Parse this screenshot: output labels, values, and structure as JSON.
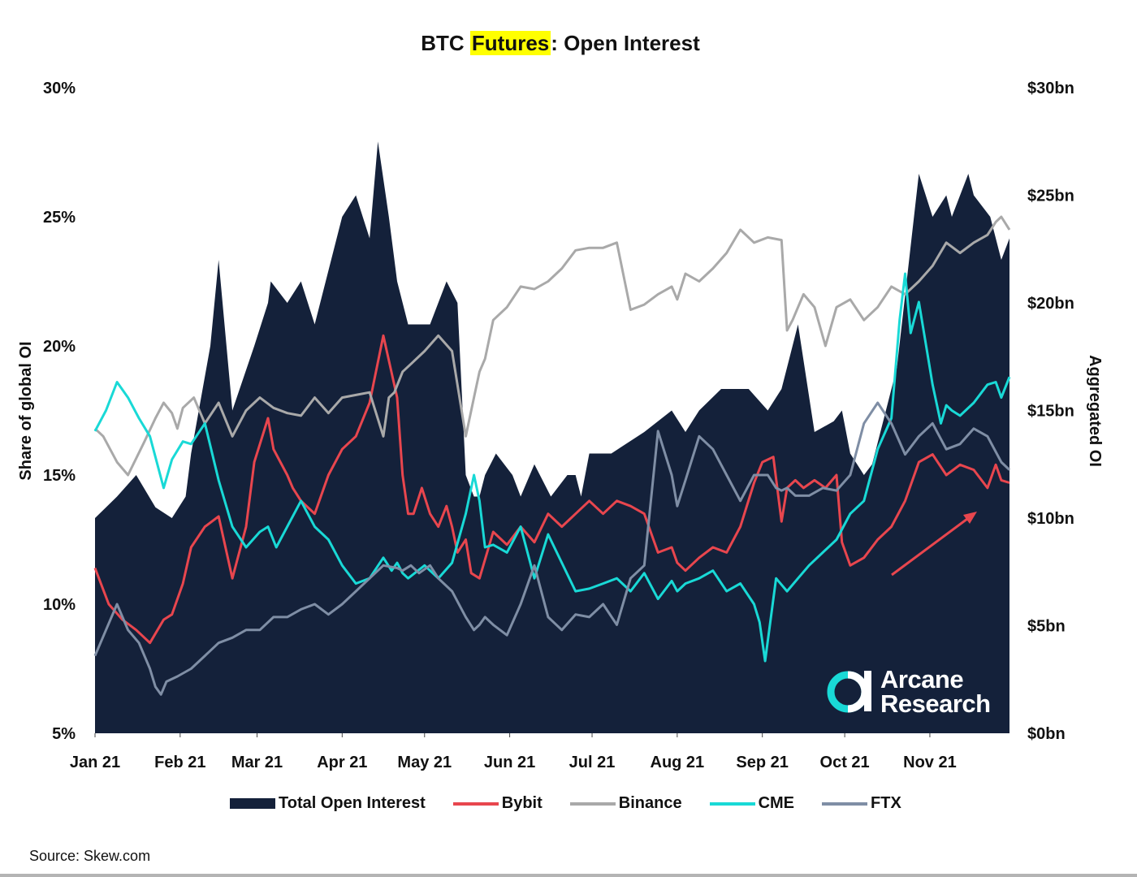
{
  "chart_data": {
    "type": "line",
    "title_parts": [
      "BTC ",
      "Futures",
      ": Open Interest"
    ],
    "ylabel_left": "Share of global OI",
    "ylabel_right": "Aggregated OI",
    "ylim_left": [
      5,
      30
    ],
    "ylim_right": [
      0,
      30
    ],
    "yticks_left": [
      "5%",
      "10%",
      "15%",
      "20%",
      "25%",
      "30%"
    ],
    "yticks_right": [
      "$0bn",
      "$5bn",
      "$10bn",
      "$15bn",
      "$20bn",
      "$25bn",
      "$30bn"
    ],
    "x_labels": [
      "Jan 21",
      "Feb 21",
      "Mar 21",
      "Apr 21",
      "May 21",
      "Jun 21",
      "Jul 21",
      "Aug 21",
      "Sep 21",
      "Oct 21",
      "Nov 21"
    ],
    "x_range_days": [
      0,
      333
    ],
    "grid": false,
    "legend_position": "bottom",
    "source": "Source: Skew.com",
    "logo_lines": [
      "Arcane",
      "Research"
    ],
    "colors": {
      "Total Open Interest": "#14213a",
      "Bybit": "#e8464e",
      "Binance": "#a9a9a9",
      "CME": "#19d9d6",
      "FTX": "#7f8ea5"
    },
    "series": [
      {
        "name": "Total Open Interest",
        "axis": "right",
        "kind": "area",
        "x": [
          0,
          8,
          15,
          22,
          28,
          33,
          35,
          42,
          45,
          50,
          58,
          63,
          64,
          70,
          75,
          80,
          90,
          95,
          100,
          103,
          107,
          110,
          114,
          122,
          128,
          132,
          135,
          138,
          140,
          142,
          146,
          152,
          155,
          160,
          166,
          172,
          175,
          177,
          180,
          188,
          200,
          210,
          215,
          220,
          228,
          238,
          245,
          250,
          252,
          256,
          262,
          269,
          272,
          275,
          280,
          283,
          292,
          300,
          305,
          310,
          312,
          318,
          320,
          326,
          328,
          330,
          333
        ],
        "values": [
          10,
          11,
          12,
          10.5,
          10,
          11,
          13,
          18,
          22,
          15,
          18,
          20,
          21,
          20,
          21,
          19,
          24,
          25,
          23,
          27.5,
          24,
          21,
          19,
          19,
          21,
          20,
          12,
          11,
          11,
          12,
          13,
          12,
          11,
          12.5,
          11,
          12,
          12,
          11,
          13,
          13,
          14,
          15,
          14,
          15,
          16,
          16,
          15,
          16,
          17,
          19,
          14,
          14.5,
          15,
          13,
          12,
          12.5,
          17,
          26,
          24,
          25,
          24,
          26,
          25,
          24,
          23,
          22,
          23
        ]
      },
      {
        "name": "Bybit",
        "axis": "left",
        "x": [
          0,
          5,
          10,
          15,
          20,
          25,
          28,
          32,
          35,
          40,
          45,
          50,
          55,
          58,
          63,
          65,
          70,
          72,
          75,
          80,
          85,
          90,
          95,
          100,
          105,
          110,
          112,
          114,
          116,
          119,
          122,
          125,
          128,
          130,
          132,
          135,
          137,
          140,
          145,
          150,
          155,
          160,
          165,
          170,
          175,
          180,
          185,
          190,
          195,
          200,
          205,
          210,
          212,
          215,
          220,
          225,
          230,
          235,
          240,
          243,
          247,
          250,
          252,
          255,
          258,
          262,
          266,
          270,
          272,
          275,
          280,
          285,
          290,
          295,
          300,
          305,
          310,
          315,
          320,
          325,
          328,
          330,
          333
        ],
        "values": [
          11.4,
          10,
          9.4,
          9,
          8.5,
          9.4,
          9.6,
          10.8,
          12.2,
          13,
          13.4,
          11,
          13,
          15.5,
          17.2,
          16,
          15,
          14.5,
          14,
          13.5,
          15,
          16,
          16.5,
          17.8,
          20.4,
          18,
          15,
          13.5,
          13.5,
          14.5,
          13.5,
          13,
          13.8,
          13,
          12,
          12.5,
          11.2,
          11,
          12.8,
          12.3,
          13,
          12.4,
          13.5,
          13,
          13.5,
          14,
          13.5,
          14,
          13.8,
          13.5,
          12,
          12.2,
          11.6,
          11.3,
          11.8,
          12.2,
          12,
          13,
          14.7,
          15.5,
          15.7,
          13.2,
          14.5,
          14.8,
          14.5,
          14.8,
          14.5,
          15,
          12.4,
          11.5,
          11.8,
          12.5,
          13,
          14,
          15.5,
          15.8,
          15,
          15.4,
          15.2,
          14.5,
          15.4,
          14.8,
          14.7
        ]
      },
      {
        "name": "Binance",
        "axis": "left",
        "x": [
          0,
          3,
          8,
          12,
          18,
          22,
          25,
          28,
          30,
          32,
          36,
          40,
          45,
          50,
          55,
          60,
          65,
          70,
          75,
          80,
          85,
          90,
          95,
          100,
          105,
          107,
          109,
          112,
          115,
          120,
          125,
          130,
          135,
          138,
          140,
          142,
          145,
          150,
          155,
          160,
          165,
          170,
          175,
          180,
          185,
          190,
          195,
          200,
          205,
          210,
          212,
          215,
          220,
          225,
          230,
          235,
          240,
          245,
          250,
          252,
          254,
          256,
          258,
          262,
          266,
          270,
          275,
          280,
          285,
          290,
          295,
          300,
          305,
          310,
          315,
          320,
          325,
          328,
          330,
          333
        ],
        "values": [
          16.8,
          16.5,
          15.5,
          15,
          16.3,
          17.2,
          17.8,
          17.4,
          16.8,
          17.6,
          18,
          17,
          17.8,
          16.5,
          17.5,
          18,
          17.6,
          17.4,
          17.3,
          18,
          17.4,
          18,
          18.1,
          18.2,
          16.5,
          18,
          18.2,
          19,
          19.3,
          19.8,
          20.4,
          19.8,
          16.5,
          18,
          19,
          19.5,
          21,
          21.5,
          22.3,
          22.2,
          22.5,
          23,
          23.7,
          23.8,
          23.8,
          24,
          21.4,
          21.6,
          22,
          22.3,
          21.8,
          22.8,
          22.5,
          23,
          23.6,
          24.5,
          24,
          24.2,
          24.1,
          20.6,
          21,
          21.5,
          22,
          21.5,
          20,
          21.5,
          21.8,
          21,
          21.5,
          22.3,
          22,
          22.5,
          23.1,
          24,
          23.6,
          24,
          24.3,
          24.8,
          25,
          24.5
        ]
      },
      {
        "name": "CME",
        "axis": "left",
        "x": [
          0,
          4,
          8,
          12,
          16,
          20,
          25,
          28,
          32,
          35,
          40,
          45,
          50,
          55,
          60,
          63,
          66,
          70,
          75,
          80,
          85,
          90,
          95,
          100,
          105,
          108,
          110,
          112,
          114,
          120,
          125,
          130,
          135,
          138,
          140,
          142,
          145,
          150,
          155,
          160,
          165,
          170,
          175,
          180,
          185,
          190,
          195,
          200,
          205,
          210,
          212,
          215,
          220,
          225,
          230,
          235,
          240,
          242,
          244,
          248,
          252,
          256,
          260,
          265,
          270,
          275,
          280,
          285,
          290,
          293,
          295,
          297,
          300,
          305,
          308,
          310,
          312,
          315,
          320,
          325,
          328,
          330,
          333
        ],
        "values": [
          16.7,
          17.5,
          18.6,
          18,
          17.2,
          16.5,
          14.5,
          15.6,
          16.3,
          16.2,
          17,
          14.8,
          13,
          12.2,
          12.8,
          13,
          12.2,
          13,
          14,
          13,
          12.5,
          11.5,
          10.8,
          11,
          11.8,
          11.3,
          11.6,
          11.2,
          11,
          11.5,
          11,
          11.6,
          13.5,
          15,
          14,
          12.2,
          12.3,
          12,
          13,
          11,
          12.7,
          11.6,
          10.5,
          10.6,
          10.8,
          11,
          10.5,
          11.2,
          10.2,
          10.9,
          10.5,
          10.8,
          11,
          11.3,
          10.5,
          10.8,
          10,
          9.3,
          7.8,
          11,
          10.5,
          11,
          11.5,
          12,
          12.5,
          13.5,
          14,
          16,
          17.2,
          21,
          22.8,
          20.5,
          21.7,
          18.5,
          17,
          17.7,
          17.5,
          17.3,
          17.8,
          18.5,
          18.6,
          18,
          18.8
        ]
      },
      {
        "name": "FTX",
        "axis": "left",
        "x": [
          0,
          4,
          8,
          12,
          16,
          20,
          22,
          24,
          26,
          30,
          35,
          40,
          45,
          50,
          55,
          60,
          65,
          70,
          75,
          80,
          85,
          90,
          95,
          100,
          105,
          110,
          112,
          115,
          118,
          122,
          125,
          130,
          135,
          138,
          140,
          142,
          145,
          150,
          155,
          160,
          165,
          170,
          175,
          180,
          185,
          190,
          195,
          200,
          205,
          210,
          212,
          215,
          220,
          225,
          230,
          235,
          240,
          245,
          248,
          250,
          252,
          255,
          260,
          265,
          270,
          275,
          280,
          285,
          290,
          295,
          300,
          305,
          310,
          315,
          320,
          325,
          330,
          333
        ],
        "values": [
          8,
          9,
          10,
          9,
          8.5,
          7.5,
          6.8,
          6.5,
          7,
          7.2,
          7.5,
          8,
          8.5,
          8.7,
          9,
          9,
          9.5,
          9.5,
          9.8,
          10,
          9.6,
          10,
          10.5,
          11,
          11.5,
          11.4,
          11.3,
          11.5,
          11.2,
          11.5,
          11,
          10.5,
          9.5,
          9,
          9.2,
          9.5,
          9.2,
          8.8,
          10,
          11.5,
          9.5,
          9,
          9.6,
          9.5,
          10,
          9.2,
          11,
          11.5,
          16.7,
          15,
          13.8,
          14.8,
          16.5,
          16,
          15,
          14,
          15,
          15,
          14.5,
          14.4,
          14.5,
          14.2,
          14.2,
          14.5,
          14.4,
          15,
          17,
          17.8,
          17,
          15.8,
          16.5,
          17,
          16,
          16.2,
          16.8,
          16.5,
          15.5,
          15.2
        ]
      }
    ]
  }
}
